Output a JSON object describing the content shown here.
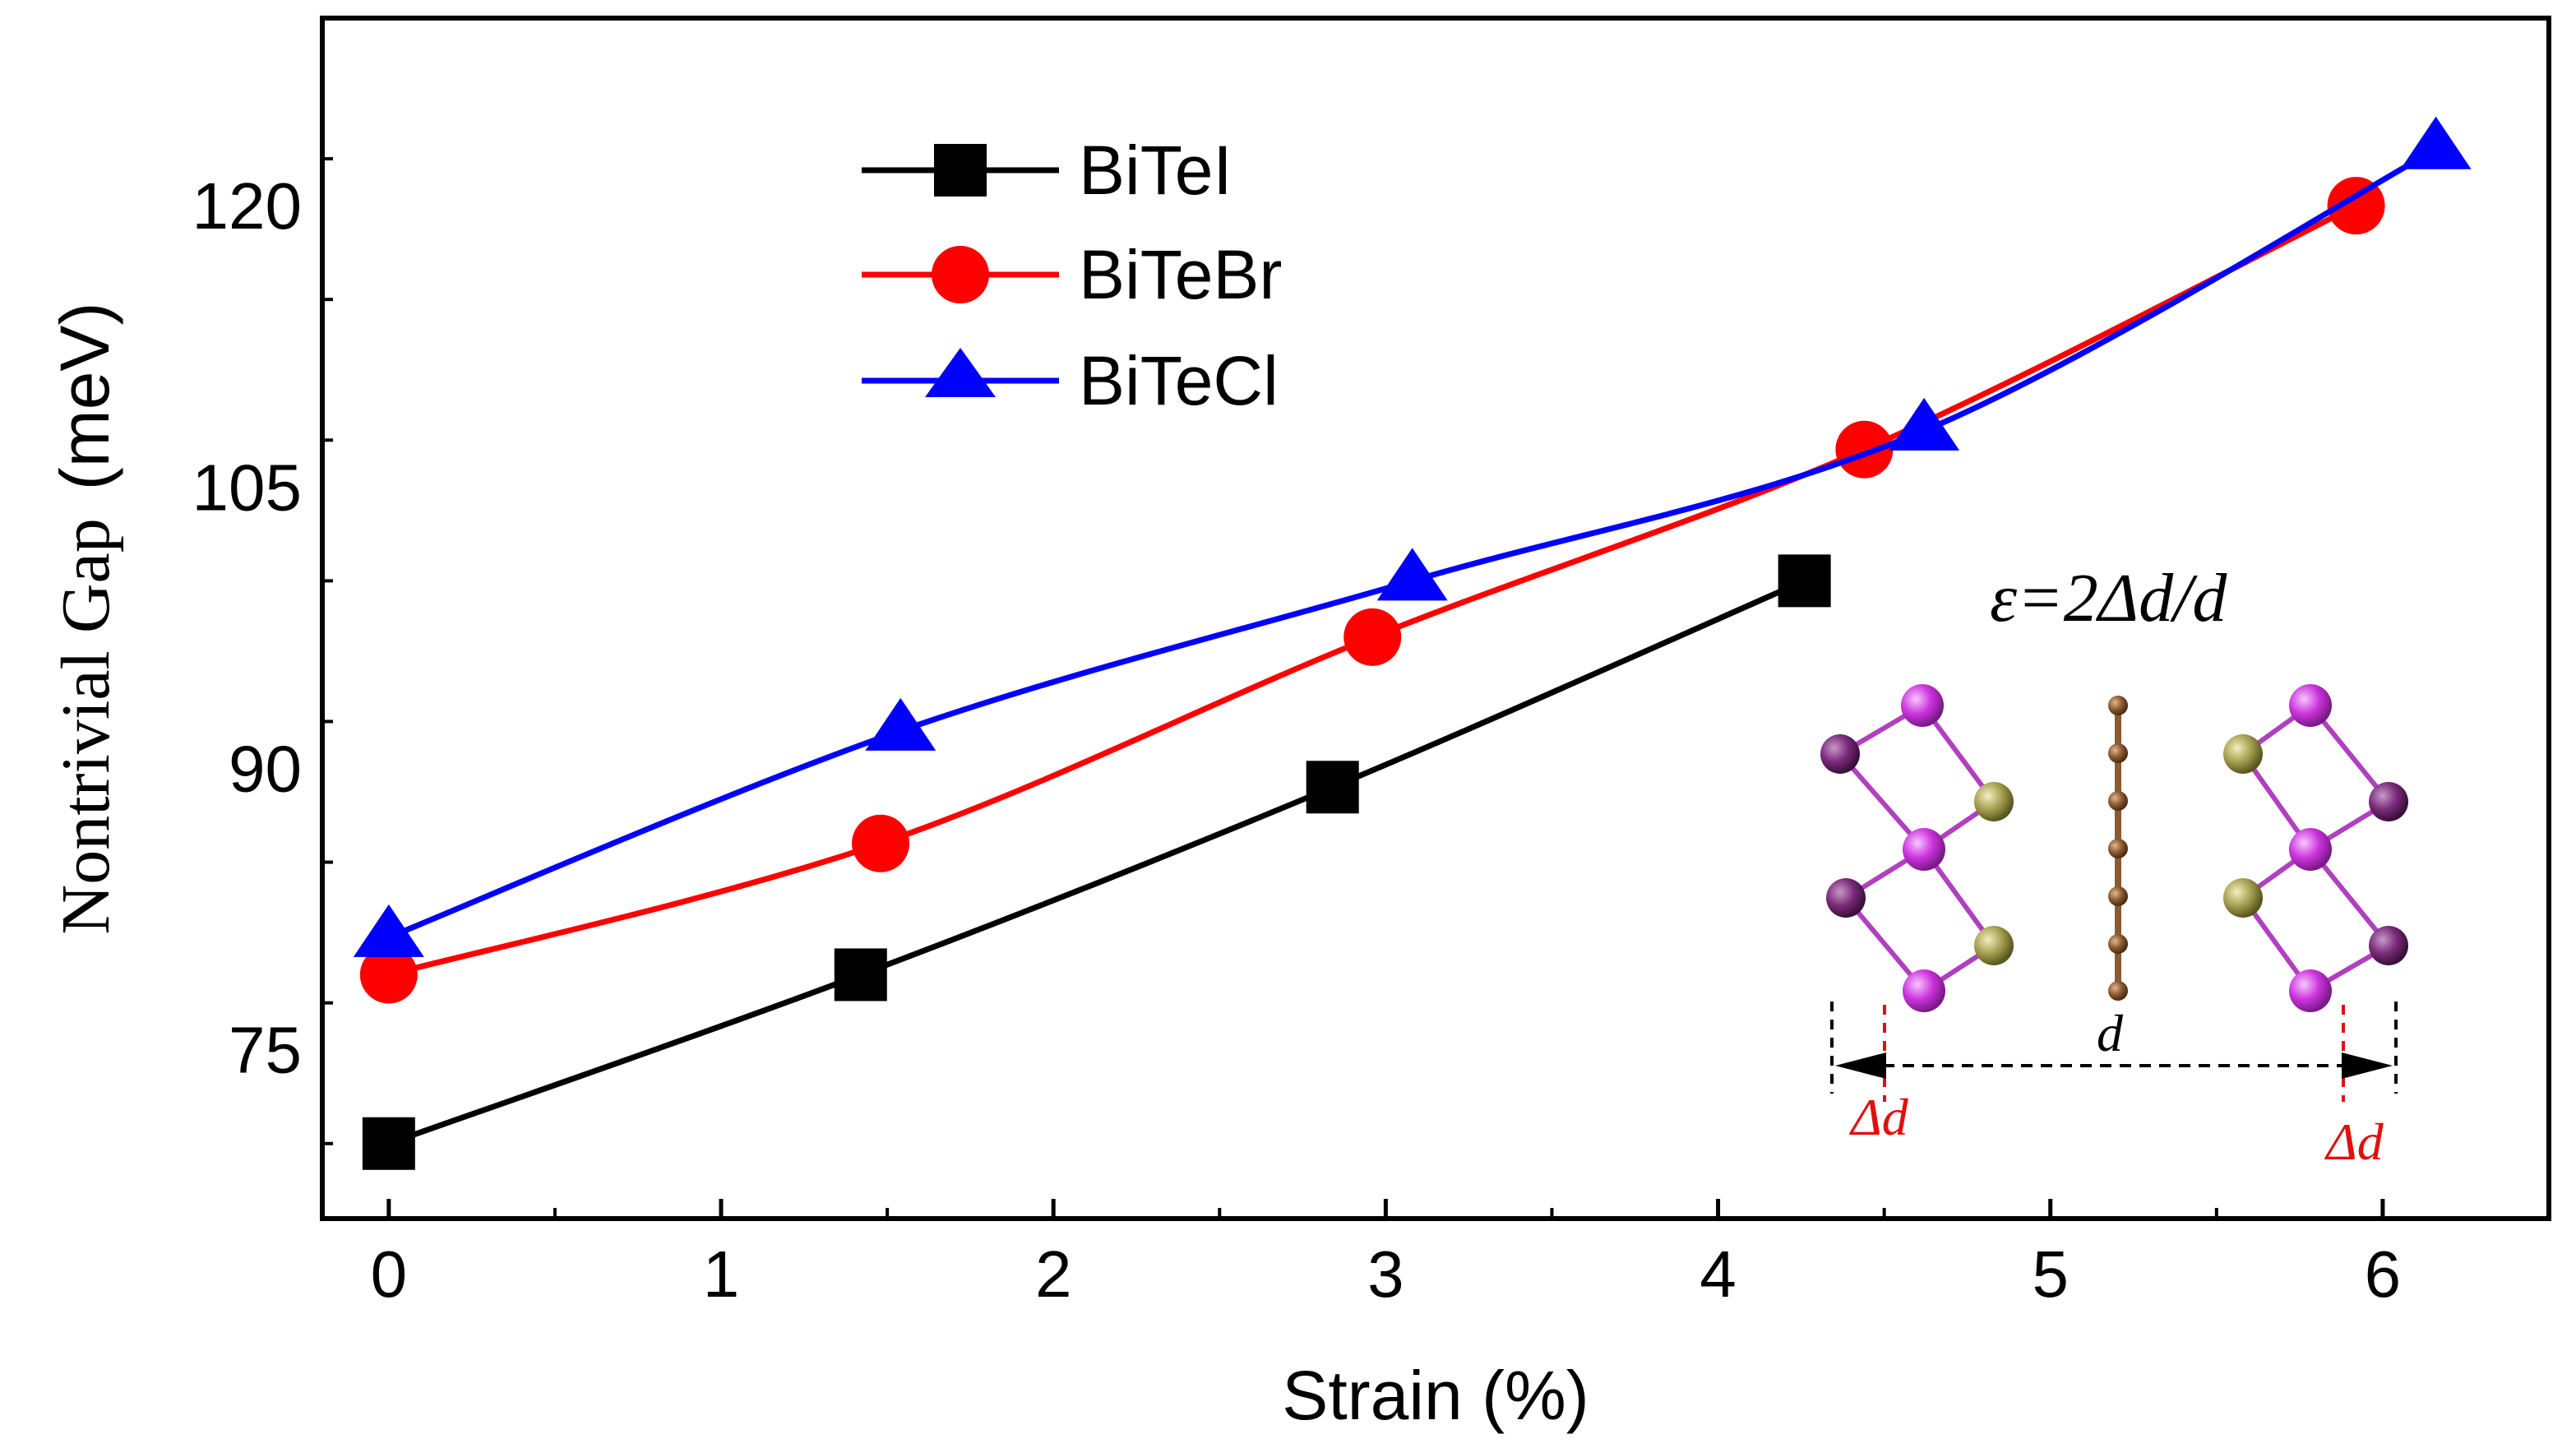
{
  "chart_data": {
    "type": "line",
    "xlabel": "Strain (%)",
    "ylabel_parts": [
      "Nontrivial Gap",
      "(meV)"
    ],
    "xlim": [
      -0.2,
      6.5
    ],
    "ylim": [
      66,
      130
    ],
    "xticks": [
      0,
      1,
      2,
      3,
      4,
      5,
      6
    ],
    "xtick_labels": [
      "0",
      "1",
      "2",
      "3",
      "4",
      "5",
      "6"
    ],
    "yticks": [
      75,
      90,
      105,
      120
    ],
    "ytick_labels": [
      "75",
      "90",
      "105",
      "120"
    ],
    "grid": false,
    "legend_position": "top-left",
    "series": [
      {
        "name": "BiTeI",
        "color": "#000000",
        "marker": "square",
        "x": [
          0,
          1.42,
          2.84,
          4.26
        ],
        "y": [
          70,
          79,
          89,
          100
        ]
      },
      {
        "name": "BiTeBr",
        "color": "#ff0000",
        "marker": "circle",
        "x": [
          0,
          1.48,
          2.96,
          4.44,
          5.92
        ],
        "y": [
          79,
          86,
          97,
          107,
          120
        ]
      },
      {
        "name": "BiTeCl",
        "color": "#0000ff",
        "marker": "triangle",
        "x": [
          0,
          1.54,
          3.08,
          4.62,
          6.16
        ],
        "y": [
          81,
          92,
          100,
          108,
          123
        ]
      }
    ],
    "inset": {
      "formula": "ε=2Δd/d",
      "d_label": "d",
      "delta_left": "Δd",
      "delta_right": "Δd",
      "atom_colors": {
        "bi": "#cc33dd",
        "te": "#7a2a7a",
        "x": "#a6a050",
        "c": "#8a5a32"
      }
    }
  }
}
